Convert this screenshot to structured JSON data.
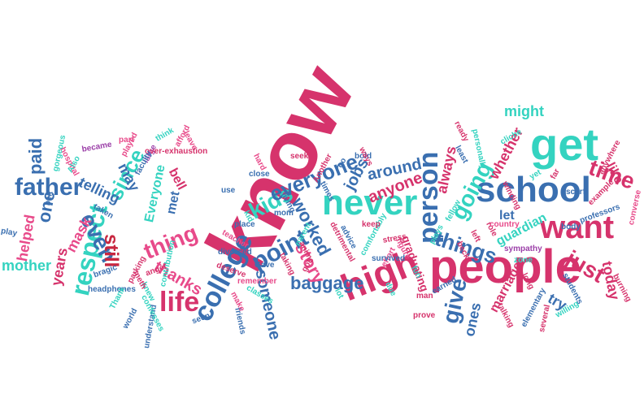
{
  "colors": {
    "crimson": "#d6336c",
    "blue": "#3a6fb0",
    "teal": "#34d3c0",
    "pink": "#e84a8a",
    "purple": "#9b3fa8",
    "red": "#c8263f",
    "navy": "#2f4f8f"
  },
  "words": [
    {
      "text": "know",
      "color": "crimson"
    },
    {
      "text": "people",
      "color": "crimson"
    },
    {
      "text": "school",
      "color": "blue"
    },
    {
      "text": "get",
      "color": "teal"
    },
    {
      "text": "never",
      "color": "teal"
    },
    {
      "text": "want",
      "color": "crimson"
    },
    {
      "text": "high",
      "color": "crimson"
    },
    {
      "text": "college",
      "color": "blue"
    },
    {
      "text": "person",
      "color": "blue"
    },
    {
      "text": "life",
      "color": "crimson"
    },
    {
      "text": "father",
      "color": "blue"
    },
    {
      "text": "respect",
      "color": "teal"
    },
    {
      "text": "point",
      "color": "blue"
    },
    {
      "text": "kids",
      "color": "teal"
    },
    {
      "text": "everyone",
      "color": "blue"
    },
    {
      "text": "thing",
      "color": "pink"
    },
    {
      "text": "things",
      "color": "blue"
    },
    {
      "text": "time",
      "color": "crimson"
    },
    {
      "text": "going",
      "color": "teal"
    },
    {
      "text": "give",
      "color": "blue"
    },
    {
      "text": "even",
      "color": "blue"
    },
    {
      "text": "since",
      "color": "teal"
    },
    {
      "text": "just",
      "color": "crimson"
    },
    {
      "text": "still",
      "color": "red"
    },
    {
      "text": "baggage",
      "color": "blue"
    },
    {
      "text": "story",
      "color": "pink"
    },
    {
      "text": "worked",
      "color": "blue"
    },
    {
      "text": "anyone",
      "color": "crimson"
    },
    {
      "text": "around",
      "color": "blue"
    },
    {
      "text": "jobs",
      "color": "blue"
    },
    {
      "text": "someone",
      "color": "blue"
    },
    {
      "text": "thanks",
      "color": "pink"
    },
    {
      "text": "mother",
      "color": "teal"
    },
    {
      "text": "one",
      "color": "blue"
    },
    {
      "text": "paid",
      "color": "blue"
    },
    {
      "text": "helped",
      "color": "pink"
    },
    {
      "text": "years",
      "color": "crimson"
    },
    {
      "text": "mask",
      "color": "pink"
    },
    {
      "text": "telling",
      "color": "blue"
    },
    {
      "text": "may",
      "color": "blue"
    },
    {
      "text": "Everyone",
      "color": "teal"
    },
    {
      "text": "bell",
      "color": "crimson"
    },
    {
      "text": "met",
      "color": "blue"
    },
    {
      "text": "might",
      "color": "teal"
    },
    {
      "text": "whether",
      "color": "crimson"
    },
    {
      "text": "always",
      "color": "crimson"
    },
    {
      "text": "guardian",
      "color": "teal"
    },
    {
      "text": "let",
      "color": "blue"
    },
    {
      "text": "marriage",
      "color": "crimson"
    },
    {
      "text": "ones",
      "color": "blue"
    },
    {
      "text": "try",
      "color": "blue"
    },
    {
      "text": "today",
      "color": "crimson"
    },
    {
      "text": "like",
      "color": "crimson"
    },
    {
      "text": "graduating",
      "color": "crimson"
    },
    {
      "text": "became",
      "color": "purple"
    },
    {
      "text": "played",
      "color": "pink"
    },
    {
      "text": "part",
      "color": "pink"
    },
    {
      "text": "large",
      "color": "purple"
    },
    {
      "text": "afford",
      "color": "pink"
    },
    {
      "text": "leave",
      "color": "pink"
    },
    {
      "text": "think",
      "color": "teal"
    },
    {
      "text": "over-exhaustion",
      "color": "crimson"
    },
    {
      "text": "faculty",
      "color": "blue"
    },
    {
      "text": "hard",
      "color": "pink"
    },
    {
      "text": "close",
      "color": "blue"
    },
    {
      "text": "seek",
      "color": "crimson"
    },
    {
      "text": "bold",
      "color": "blue"
    },
    {
      "text": "ways",
      "color": "crimson"
    },
    {
      "text": "go",
      "color": "blue"
    },
    {
      "text": "ready",
      "color": "crimson"
    },
    {
      "text": "cliche",
      "color": "teal"
    },
    {
      "text": "personally",
      "color": "teal"
    },
    {
      "text": "least",
      "color": "blue"
    },
    {
      "text": "winding",
      "color": "crimson"
    },
    {
      "text": "yet",
      "color": "teal"
    },
    {
      "text": "far",
      "color": "crimson"
    },
    {
      "text": "anywhere",
      "color": "crimson"
    },
    {
      "text": "scarf",
      "color": "blue"
    },
    {
      "text": "example",
      "color": "crimson"
    },
    {
      "text": "converse",
      "color": "pink"
    },
    {
      "text": "professors",
      "color": "blue"
    },
    {
      "text": "burning",
      "color": "crimson"
    },
    {
      "text": "body",
      "color": "blue"
    },
    {
      "text": "zone",
      "color": "teal"
    },
    {
      "text": "sympathy",
      "color": "purple"
    },
    {
      "text": "long",
      "color": "crimson"
    },
    {
      "text": "role",
      "color": "crimson"
    },
    {
      "text": "left",
      "color": "crimson"
    },
    {
      "text": "becky",
      "color": "crimson"
    },
    {
      "text": "country",
      "color": "pink"
    },
    {
      "text": "fellow",
      "color": "teal"
    },
    {
      "text": "plays",
      "color": "teal"
    },
    {
      "text": "fun",
      "color": "teal"
    },
    {
      "text": "figure",
      "color": "pink"
    },
    {
      "text": "stress",
      "color": "crimson"
    },
    {
      "text": "effort",
      "color": "pink"
    },
    {
      "text": "survived",
      "color": "blue"
    },
    {
      "text": "comfortably",
      "color": "teal"
    },
    {
      "text": "keep",
      "color": "crimson"
    },
    {
      "text": "advice",
      "color": "blue"
    },
    {
      "text": "detrimental",
      "color": "crimson"
    },
    {
      "text": "times",
      "color": "blue"
    },
    {
      "text": "Another",
      "color": "crimson"
    },
    {
      "text": "living",
      "color": "blue"
    },
    {
      "text": "parent",
      "color": "teal"
    },
    {
      "text": "taking",
      "color": "crimson"
    },
    {
      "text": "anime",
      "color": "crimson"
    },
    {
      "text": "mom",
      "color": "blue"
    },
    {
      "text": "Gave",
      "color": "blue"
    },
    {
      "text": "kid",
      "color": "teal"
    },
    {
      "text": "use",
      "color": "blue"
    },
    {
      "text": "place",
      "color": "blue"
    },
    {
      "text": "teacher",
      "color": "pink"
    },
    {
      "text": "divorced",
      "color": "blue"
    },
    {
      "text": "deserve",
      "color": "crimson"
    },
    {
      "text": "remember",
      "color": "pink"
    },
    {
      "text": "classes",
      "color": "teal"
    },
    {
      "text": "friends",
      "color": "blue"
    },
    {
      "text": "make",
      "color": "pink"
    },
    {
      "text": "seen",
      "color": "blue"
    },
    {
      "text": "contribution",
      "color": "teal"
    },
    {
      "text": "knew",
      "color": "teal"
    },
    {
      "text": "meth",
      "color": "crimson"
    },
    {
      "text": "angel",
      "color": "crimson"
    },
    {
      "text": "parking",
      "color": "crimson"
    },
    {
      "text": "bragic",
      "color": "blue"
    },
    {
      "text": "headphones",
      "color": "blue"
    },
    {
      "text": "Thank",
      "color": "teal"
    },
    {
      "text": "world",
      "color": "blue"
    },
    {
      "text": "understand",
      "color": "blue"
    },
    {
      "text": "confesses",
      "color": "teal"
    },
    {
      "text": "taken",
      "color": "blue"
    },
    {
      "text": "belt",
      "color": "blue"
    },
    {
      "text": "play",
      "color": "blue"
    },
    {
      "text": "hospital",
      "color": "pink"
    },
    {
      "text": "Also",
      "color": "teal"
    },
    {
      "text": "gorgeous",
      "color": "teal"
    },
    {
      "text": "man",
      "color": "crimson"
    },
    {
      "text": "earned",
      "color": "blue"
    },
    {
      "text": "prove",
      "color": "crimson"
    },
    {
      "text": "lot",
      "color": "teal"
    },
    {
      "text": "due",
      "color": "teal"
    },
    {
      "text": "students",
      "color": "blue"
    },
    {
      "text": "elementary",
      "color": "blue"
    },
    {
      "text": "several",
      "color": "crimson"
    },
    {
      "text": "willing",
      "color": "teal"
    },
    {
      "text": "talking",
      "color": "crimson"
    },
    {
      "text": "got",
      "color": "crimson"
    }
  ]
}
